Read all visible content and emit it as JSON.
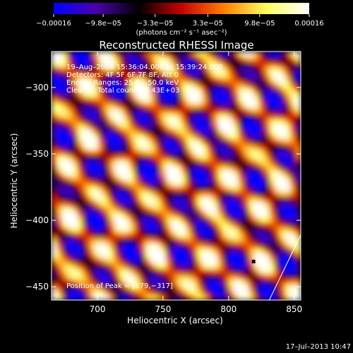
{
  "chart_data": {
    "type": "heatmap",
    "title": "Reconstructed RHESSI Image",
    "xlabel": "Heliocentric X (arcsec)",
    "ylabel": "Heliocentric Y (arcsec)",
    "xlim": [
      665,
      855
    ],
    "ylim": [
      -460,
      -273
    ],
    "x_ticks": [
      700,
      750,
      800,
      850
    ],
    "x_tick_labels": [
      "700",
      "750",
      "800",
      "850"
    ],
    "y_ticks": [
      -300,
      -350,
      -400,
      -450
    ],
    "y_tick_labels": [
      "−300",
      "−350",
      "−400",
      "−450"
    ],
    "colorbar": {
      "min": -0.00016,
      "max": 0.00016,
      "tick_values": [
        -0.00016,
        -9.8e-05,
        -3.3e-05,
        3.3e-05,
        9.8e-05,
        0.00016
      ],
      "tick_labels": [
        "−0.00016",
        "−9.8e−05",
        "−3.3e−05",
        "3.3e−05",
        "9.8e−05",
        "0.00016"
      ],
      "units_label": "(photons cm⁻² s⁻¹ asec⁻²)",
      "colormap": [
        "#0000ff",
        "#4b00aa",
        "#000000",
        "#c80000",
        "#ff8000",
        "#ffff60",
        "#ffffff"
      ]
    },
    "annotations": {
      "time_range": "19–Aug–2006 15:36:04.000 to 15:39:24.000",
      "detectors": "Detectors: 4F 5F 6F 7F 8F, Att 0",
      "energy_range": "Energy Ranges: 25.0 – 50.0 keV",
      "clean_counts": "Clean     Total counts: 4.43E+03",
      "peak_position": "Position of Peak = [679,−317]"
    },
    "peak": {
      "x": 679,
      "y": -317
    },
    "marker": {
      "x": 819,
      "y": -431
    },
    "limb_line": [
      {
        "x": 831,
        "y": -460
      },
      {
        "x": 855,
        "y": -411
      }
    ]
  },
  "footer": {
    "date_stamp": "17–Jul–2013 10:47"
  }
}
